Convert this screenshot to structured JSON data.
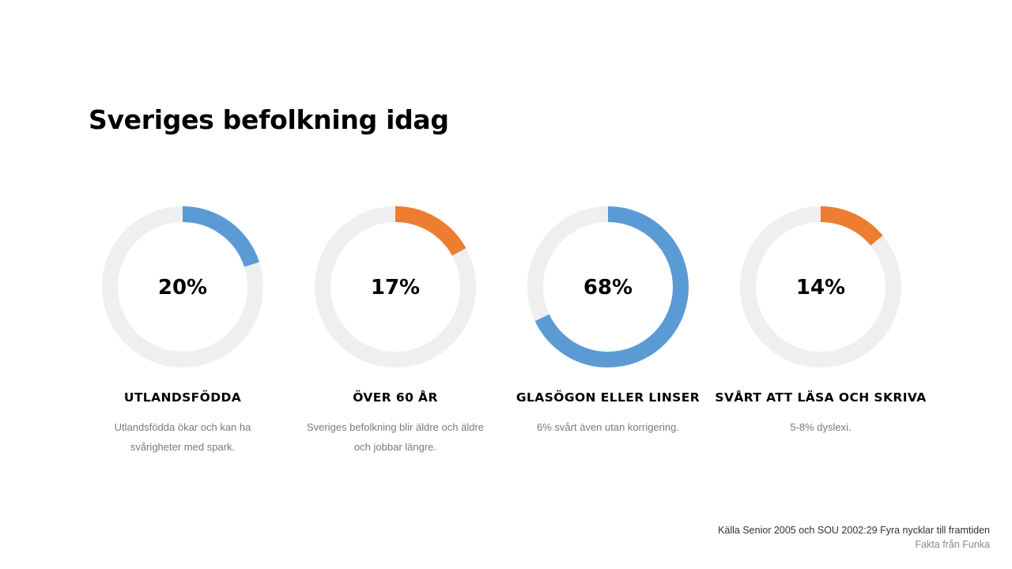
{
  "title": "Sveriges befolkning idag",
  "colors": {
    "blue": "#5b9bd5",
    "orange": "#ed7d31",
    "track": "#efefef"
  },
  "chart_data": {
    "type": "pie",
    "title": "Sveriges befolkning idag",
    "items": [
      {
        "value": 20,
        "value_label": "20%",
        "label": "UTLANDSFÖDDA",
        "description": "Utlandsfödda ökar och kan ha svårigheter med spark.",
        "color": "#5b9bd5"
      },
      {
        "value": 17,
        "value_label": "17%",
        "label": "ÖVER 60 ÅR",
        "description": "Sveriges befolkning blir äldre och äldre och jobbar längre.",
        "color": "#ed7d31"
      },
      {
        "value": 68,
        "value_label": "68%",
        "label": "GLASÖGON ELLER LINSER",
        "description": "6% svårt även utan korrigering.",
        "color": "#5b9bd5"
      },
      {
        "value": 14,
        "value_label": "14%",
        "label": "SVÅRT ATT LÄSA OCH SKRIVA",
        "description": "5-8% dyslexi.",
        "color": "#ed7d31"
      }
    ]
  },
  "source": {
    "line1": "Källa Senior 2005 och SOU 2002:29 Fyra nycklar till framtiden",
    "line2": "Fakta från Funka"
  }
}
